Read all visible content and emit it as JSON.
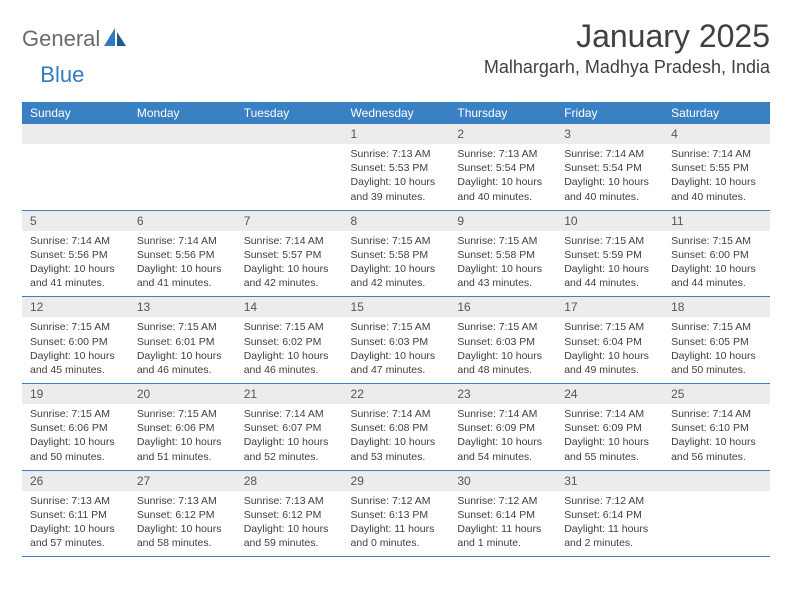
{
  "logo": {
    "text1": "General",
    "text2": "Blue"
  },
  "title": "January 2025",
  "location": "Malhargarh, Madhya Pradesh, India",
  "colors": {
    "header_bg": "#3a81c4",
    "header_text": "#ffffff",
    "daynum_bg": "#ececec",
    "text": "#404040",
    "logo_gray": "#6a6a6a",
    "logo_blue": "#2f7bbf",
    "rule": "#3a81c4"
  },
  "weekdays": [
    "Sunday",
    "Monday",
    "Tuesday",
    "Wednesday",
    "Thursday",
    "Friday",
    "Saturday"
  ],
  "weeks": [
    [
      {
        "num": "",
        "lines": []
      },
      {
        "num": "",
        "lines": []
      },
      {
        "num": "",
        "lines": []
      },
      {
        "num": "1",
        "lines": [
          "Sunrise: 7:13 AM",
          "Sunset: 5:53 PM",
          "Daylight: 10 hours",
          "and 39 minutes."
        ]
      },
      {
        "num": "2",
        "lines": [
          "Sunrise: 7:13 AM",
          "Sunset: 5:54 PM",
          "Daylight: 10 hours",
          "and 40 minutes."
        ]
      },
      {
        "num": "3",
        "lines": [
          "Sunrise: 7:14 AM",
          "Sunset: 5:54 PM",
          "Daylight: 10 hours",
          "and 40 minutes."
        ]
      },
      {
        "num": "4",
        "lines": [
          "Sunrise: 7:14 AM",
          "Sunset: 5:55 PM",
          "Daylight: 10 hours",
          "and 40 minutes."
        ]
      }
    ],
    [
      {
        "num": "5",
        "lines": [
          "Sunrise: 7:14 AM",
          "Sunset: 5:56 PM",
          "Daylight: 10 hours",
          "and 41 minutes."
        ]
      },
      {
        "num": "6",
        "lines": [
          "Sunrise: 7:14 AM",
          "Sunset: 5:56 PM",
          "Daylight: 10 hours",
          "and 41 minutes."
        ]
      },
      {
        "num": "7",
        "lines": [
          "Sunrise: 7:14 AM",
          "Sunset: 5:57 PM",
          "Daylight: 10 hours",
          "and 42 minutes."
        ]
      },
      {
        "num": "8",
        "lines": [
          "Sunrise: 7:15 AM",
          "Sunset: 5:58 PM",
          "Daylight: 10 hours",
          "and 42 minutes."
        ]
      },
      {
        "num": "9",
        "lines": [
          "Sunrise: 7:15 AM",
          "Sunset: 5:58 PM",
          "Daylight: 10 hours",
          "and 43 minutes."
        ]
      },
      {
        "num": "10",
        "lines": [
          "Sunrise: 7:15 AM",
          "Sunset: 5:59 PM",
          "Daylight: 10 hours",
          "and 44 minutes."
        ]
      },
      {
        "num": "11",
        "lines": [
          "Sunrise: 7:15 AM",
          "Sunset: 6:00 PM",
          "Daylight: 10 hours",
          "and 44 minutes."
        ]
      }
    ],
    [
      {
        "num": "12",
        "lines": [
          "Sunrise: 7:15 AM",
          "Sunset: 6:00 PM",
          "Daylight: 10 hours",
          "and 45 minutes."
        ]
      },
      {
        "num": "13",
        "lines": [
          "Sunrise: 7:15 AM",
          "Sunset: 6:01 PM",
          "Daylight: 10 hours",
          "and 46 minutes."
        ]
      },
      {
        "num": "14",
        "lines": [
          "Sunrise: 7:15 AM",
          "Sunset: 6:02 PM",
          "Daylight: 10 hours",
          "and 46 minutes."
        ]
      },
      {
        "num": "15",
        "lines": [
          "Sunrise: 7:15 AM",
          "Sunset: 6:03 PM",
          "Daylight: 10 hours",
          "and 47 minutes."
        ]
      },
      {
        "num": "16",
        "lines": [
          "Sunrise: 7:15 AM",
          "Sunset: 6:03 PM",
          "Daylight: 10 hours",
          "and 48 minutes."
        ]
      },
      {
        "num": "17",
        "lines": [
          "Sunrise: 7:15 AM",
          "Sunset: 6:04 PM",
          "Daylight: 10 hours",
          "and 49 minutes."
        ]
      },
      {
        "num": "18",
        "lines": [
          "Sunrise: 7:15 AM",
          "Sunset: 6:05 PM",
          "Daylight: 10 hours",
          "and 50 minutes."
        ]
      }
    ],
    [
      {
        "num": "19",
        "lines": [
          "Sunrise: 7:15 AM",
          "Sunset: 6:06 PM",
          "Daylight: 10 hours",
          "and 50 minutes."
        ]
      },
      {
        "num": "20",
        "lines": [
          "Sunrise: 7:15 AM",
          "Sunset: 6:06 PM",
          "Daylight: 10 hours",
          "and 51 minutes."
        ]
      },
      {
        "num": "21",
        "lines": [
          "Sunrise: 7:14 AM",
          "Sunset: 6:07 PM",
          "Daylight: 10 hours",
          "and 52 minutes."
        ]
      },
      {
        "num": "22",
        "lines": [
          "Sunrise: 7:14 AM",
          "Sunset: 6:08 PM",
          "Daylight: 10 hours",
          "and 53 minutes."
        ]
      },
      {
        "num": "23",
        "lines": [
          "Sunrise: 7:14 AM",
          "Sunset: 6:09 PM",
          "Daylight: 10 hours",
          "and 54 minutes."
        ]
      },
      {
        "num": "24",
        "lines": [
          "Sunrise: 7:14 AM",
          "Sunset: 6:09 PM",
          "Daylight: 10 hours",
          "and 55 minutes."
        ]
      },
      {
        "num": "25",
        "lines": [
          "Sunrise: 7:14 AM",
          "Sunset: 6:10 PM",
          "Daylight: 10 hours",
          "and 56 minutes."
        ]
      }
    ],
    [
      {
        "num": "26",
        "lines": [
          "Sunrise: 7:13 AM",
          "Sunset: 6:11 PM",
          "Daylight: 10 hours",
          "and 57 minutes."
        ]
      },
      {
        "num": "27",
        "lines": [
          "Sunrise: 7:13 AM",
          "Sunset: 6:12 PM",
          "Daylight: 10 hours",
          "and 58 minutes."
        ]
      },
      {
        "num": "28",
        "lines": [
          "Sunrise: 7:13 AM",
          "Sunset: 6:12 PM",
          "Daylight: 10 hours",
          "and 59 minutes."
        ]
      },
      {
        "num": "29",
        "lines": [
          "Sunrise: 7:12 AM",
          "Sunset: 6:13 PM",
          "Daylight: 11 hours",
          "and 0 minutes."
        ]
      },
      {
        "num": "30",
        "lines": [
          "Sunrise: 7:12 AM",
          "Sunset: 6:14 PM",
          "Daylight: 11 hours",
          "and 1 minute."
        ]
      },
      {
        "num": "31",
        "lines": [
          "Sunrise: 7:12 AM",
          "Sunset: 6:14 PM",
          "Daylight: 11 hours",
          "and 2 minutes."
        ]
      },
      {
        "num": "",
        "lines": []
      }
    ]
  ]
}
